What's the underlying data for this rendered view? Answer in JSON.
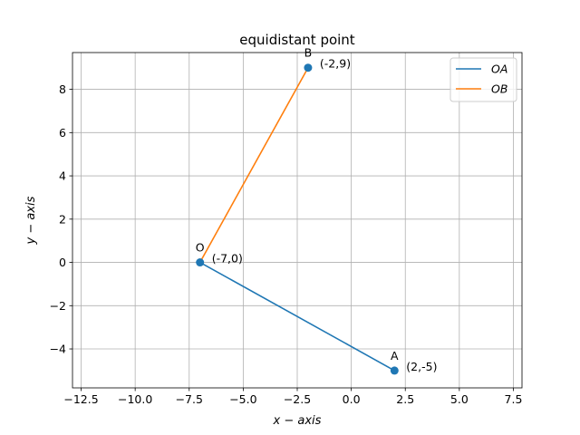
{
  "chart_data": {
    "type": "line",
    "title": "equidistant point",
    "xlabel": "x − axis",
    "ylabel": "y − axis",
    "xlim": [
      -12.9,
      7.9
    ],
    "ylim": [
      -5.8,
      9.7
    ],
    "xticks": [
      -12.5,
      -10.0,
      -7.5,
      -5.0,
      -2.5,
      0.0,
      2.5,
      5.0,
      7.5
    ],
    "xtick_labels": [
      "−12.5",
      "−10.0",
      "−7.5",
      "−5.0",
      "−2.5",
      "0.0",
      "2.5",
      "5.0",
      "7.5"
    ],
    "yticks": [
      -4,
      -2,
      0,
      2,
      4,
      6,
      8
    ],
    "ytick_labels": [
      "−4",
      "−2",
      "0",
      "2",
      "4",
      "6",
      "8"
    ],
    "grid": true,
    "legend_position": "top-right",
    "series": [
      {
        "name": "OA",
        "color": "#1f77b4",
        "x": [
          -7,
          2
        ],
        "y": [
          0,
          -5
        ]
      },
      {
        "name": "OB",
        "color": "#ff7f0e",
        "x": [
          -7,
          -2
        ],
        "y": [
          0,
          9
        ]
      }
    ],
    "points": [
      {
        "name": "O",
        "x": -7,
        "y": 0,
        "coord_label": "(-7,0)"
      },
      {
        "name": "A",
        "x": 2,
        "y": -5,
        "coord_label": "(2,-5)"
      },
      {
        "name": "B",
        "x": -2,
        "y": 9,
        "coord_label": "(-2,9)"
      }
    ],
    "marker_color": "#1f77b4"
  }
}
